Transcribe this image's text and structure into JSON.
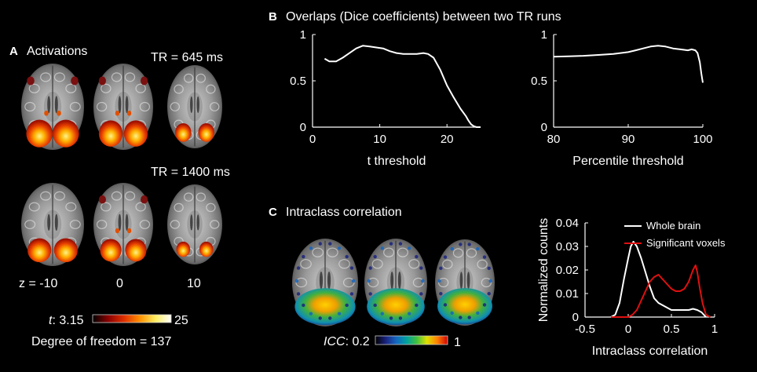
{
  "panel_a": {
    "letter": "A",
    "title": "Activations",
    "tr_top": "TR = 645 ms",
    "tr_bottom": "TR = 1400 ms",
    "z_labels": [
      "z = -10",
      "0",
      "10"
    ],
    "colorbar": {
      "var": "t",
      "min_label": ": 3.15",
      "max_label": "25",
      "colors": [
        "#000000",
        "#8b0000",
        "#e03000",
        "#ff9000",
        "#ffee60",
        "#ffffff"
      ]
    },
    "dof": "Degree of freedom = 137"
  },
  "panel_b": {
    "letter": "B",
    "title": "Overlaps (Dice coefficients) between two TR runs"
  },
  "panel_c": {
    "letter": "C",
    "title": "Intraclass correlation",
    "colorbar": {
      "var": "ICC",
      "min_label": ": 0.2",
      "max_label": "1",
      "colors": [
        "#000000",
        "#1a237e",
        "#1565c0",
        "#00a0a0",
        "#40c040",
        "#e0e000",
        "#ff8000",
        "#d00000"
      ]
    }
  },
  "chart_data": [
    {
      "type": "line",
      "xlabel": "t threshold",
      "ylabel": "",
      "xlim": [
        0,
        25
      ],
      "ylim": [
        0,
        1
      ],
      "xticks": [
        "0",
        "10",
        "20"
      ],
      "yticks": [
        "0",
        "0.5",
        "1"
      ],
      "series": [
        {
          "color": "#ffffff",
          "x": [
            1.8,
            2.5,
            3.5,
            4.5,
            5.5,
            6.5,
            7.5,
            8.5,
            9.5,
            10.5,
            11.5,
            12.5,
            13.5,
            14.5,
            15.5,
            16.5,
            17.2,
            18,
            19,
            20,
            21,
            22,
            22.8,
            23.2,
            23.6,
            24,
            24.4,
            25
          ],
          "y": [
            0.74,
            0.71,
            0.71,
            0.75,
            0.8,
            0.85,
            0.88,
            0.87,
            0.86,
            0.85,
            0.82,
            0.8,
            0.79,
            0.79,
            0.79,
            0.8,
            0.79,
            0.75,
            0.62,
            0.45,
            0.32,
            0.2,
            0.12,
            0.07,
            0.03,
            0.01,
            0.0,
            0.0
          ]
        }
      ]
    },
    {
      "type": "line",
      "xlabel": "Percentile threshold",
      "ylabel": "",
      "xlim": [
        80,
        100
      ],
      "ylim": [
        0,
        1
      ],
      "xticks": [
        "80",
        "90",
        "100"
      ],
      "yticks": [
        "0",
        "0.5",
        "1"
      ],
      "series": [
        {
          "color": "#ffffff",
          "x": [
            80,
            82,
            84,
            86,
            88,
            90,
            91,
            92,
            93,
            94,
            95,
            96,
            97,
            98,
            98.5,
            99,
            99.3,
            99.6,
            99.8,
            100
          ],
          "y": [
            0.76,
            0.765,
            0.77,
            0.78,
            0.79,
            0.81,
            0.83,
            0.85,
            0.87,
            0.88,
            0.87,
            0.85,
            0.84,
            0.83,
            0.84,
            0.83,
            0.8,
            0.7,
            0.58,
            0.48
          ]
        }
      ]
    },
    {
      "type": "line",
      "xlabel": "Intraclass correlation",
      "ylabel": "Normalized counts",
      "xlim": [
        -0.5,
        1
      ],
      "ylim": [
        0,
        0.04
      ],
      "xticks": [
        "-0.5",
        "0",
        "0.5",
        "1"
      ],
      "yticks": [
        "0",
        "0.01",
        "0.02",
        "0.03",
        "0.04"
      ],
      "legend": "top-right",
      "series": [
        {
          "name": "Whole brain",
          "color": "#ffffff",
          "x": [
            -0.2,
            -0.15,
            -0.1,
            -0.05,
            0,
            0.03,
            0.06,
            0.08,
            0.1,
            0.12,
            0.15,
            0.2,
            0.25,
            0.3,
            0.35,
            0.4,
            0.45,
            0.5,
            0.55,
            0.6,
            0.65,
            0.7,
            0.75,
            0.8,
            0.85,
            0.9
          ],
          "y": [
            0,
            0.001,
            0.006,
            0.016,
            0.025,
            0.03,
            0.032,
            0.031,
            0.03,
            0.028,
            0.025,
            0.019,
            0.013,
            0.008,
            0.006,
            0.005,
            0.004,
            0.003,
            0.003,
            0.003,
            0.003,
            0.003,
            0.0035,
            0.003,
            0.002,
            0.0
          ]
        },
        {
          "name": "Significant voxels",
          "color": "#e01010",
          "x": [
            -0.2,
            0,
            0.05,
            0.1,
            0.15,
            0.2,
            0.25,
            0.3,
            0.35,
            0.4,
            0.45,
            0.5,
            0.55,
            0.6,
            0.65,
            0.7,
            0.75,
            0.78,
            0.8,
            0.83,
            0.86,
            0.9,
            0.95
          ],
          "y": [
            0,
            0,
            0.001,
            0.003,
            0.007,
            0.011,
            0.015,
            0.017,
            0.018,
            0.016,
            0.014,
            0.012,
            0.011,
            0.011,
            0.012,
            0.015,
            0.02,
            0.022,
            0.019,
            0.012,
            0.006,
            0.001,
            0
          ]
        }
      ]
    }
  ]
}
